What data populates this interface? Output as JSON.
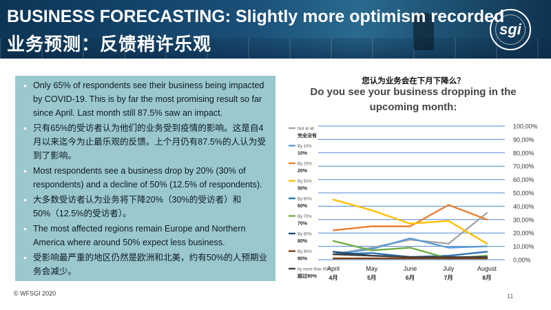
{
  "header": {
    "title_en": "BUSINESS FORECASTING: Slightly more optimism recorded",
    "title_cn": "业务预测：反馈稍许乐观",
    "logo_text": "sgi",
    "colors": {
      "bar_start": "#0b3556",
      "bar_end": "#2a6a8f"
    }
  },
  "bullets": [
    "Only 65% of respondents see their business being impacted by COVID-19. This is by far the most promising result so far since April. Last month still 87.5% saw an impact.",
    "只有65%的受访者认为他们的业务受到疫情的影响。这是自4月以来迄今为止最乐观的反馈。上个月仍有87.5%的人认为受到了影响。",
    "Most respondents see a business drop by 20% (30% of respondents) and a decline of 50% (12.5% of respondents).",
    "大多数受访者认为业务将下降20%（30%的受访者）和50%（12.5%的受访者）。",
    "The most affected regions remain Europe and Northern America where around 50% expect less business.",
    "受影响最严重的地区仍然是欧洲和北美，约有50%的人预期业务会减少。"
  ],
  "footer": {
    "copyright": "© WFSGI 2020",
    "page": "11"
  },
  "chart_data": {
    "type": "line",
    "title_cn": "您认为业务会在下月下降么？",
    "title": "Do you see your business dropping in the upcoming month:",
    "categories": [
      "April",
      "May",
      "June",
      "July",
      "August"
    ],
    "categories_cn": [
      "4月",
      "5月",
      "6月",
      "7月",
      "8月"
    ],
    "ylim": [
      0,
      100
    ],
    "ytick_labels": [
      "0,00%",
      "10,00%",
      "20,00%",
      "30,00%",
      "40,00%",
      "50,00%",
      "60,00%",
      "70,00%",
      "80,00%",
      "90,00%",
      "100,00%"
    ],
    "series": [
      {
        "name": "Not at all",
        "name_cn": "完全没有",
        "color": "#a5a5a5",
        "values": [
          4,
          9,
          15,
          12,
          35
        ]
      },
      {
        "name": "By 10%",
        "name_cn": "10%",
        "color": "#5b9bd5",
        "values": [
          4,
          8,
          16,
          9,
          10
        ]
      },
      {
        "name": "By 20%",
        "name_cn": "20%",
        "color": "#ed7d31",
        "values": [
          22,
          25,
          25,
          41,
          30
        ]
      },
      {
        "name": "By 50%",
        "name_cn": "50%",
        "color": "#ffc000",
        "values": [
          45,
          37,
          27,
          29,
          12
        ]
      },
      {
        "name": "By 60%",
        "name_cn": "60%",
        "color": "#2e75b6",
        "values": [
          4,
          5,
          2,
          3,
          6
        ]
      },
      {
        "name": "By 70%",
        "name_cn": "70%",
        "color": "#70ad47",
        "values": [
          14,
          7,
          9,
          1,
          3
        ]
      },
      {
        "name": "By 80%",
        "name_cn": "80%",
        "color": "#1f4e79",
        "values": [
          6,
          3,
          2,
          1,
          2
        ]
      },
      {
        "name": "By 90%",
        "name_cn": "90%",
        "color": "#843c0c",
        "values": [
          1,
          1,
          1,
          1,
          1
        ]
      },
      {
        "name": "by more than 90%",
        "name_cn": "超过90%",
        "color": "#404040",
        "values": [
          4,
          3,
          2,
          2,
          2
        ]
      }
    ]
  }
}
